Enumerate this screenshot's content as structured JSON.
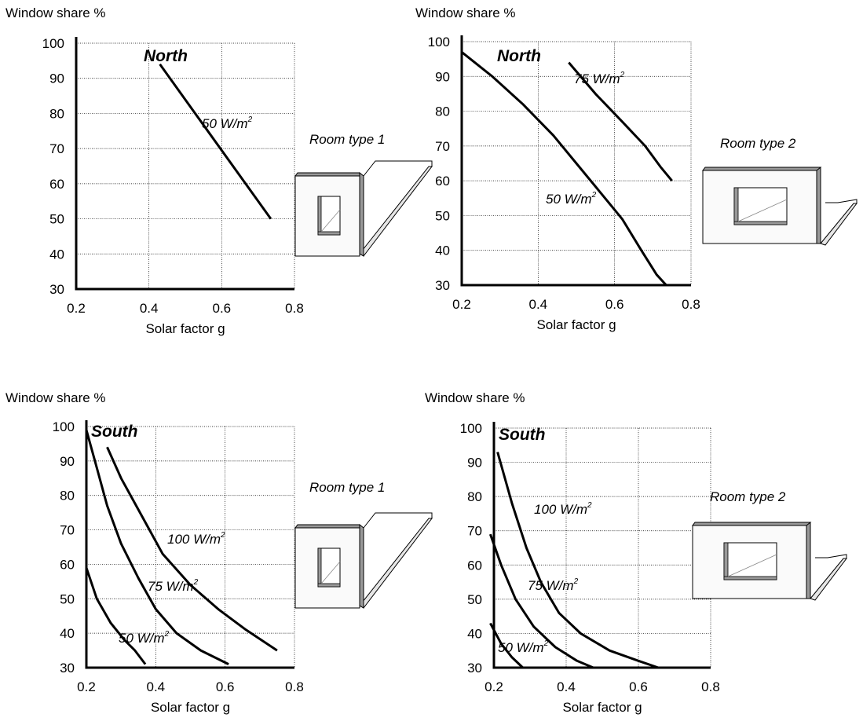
{
  "chart_data": [
    {
      "type": "line",
      "title": "North",
      "ylabel": "Window share %",
      "xlabel": "Solar factor g",
      "xlim": [
        0.2,
        0.8
      ],
      "ylim": [
        30,
        100
      ],
      "x_ticks": [
        "0.2",
        "0.4",
        "0.6",
        "0.8"
      ],
      "y_ticks": [
        "100",
        "90",
        "80",
        "70",
        "60",
        "50",
        "40",
        "30"
      ],
      "grid": true,
      "room_type": "Room type 1",
      "series": [
        {
          "name": "50 W/m2",
          "label_base": "50 W/m",
          "label_sup": "2",
          "points": [
            [
              0.43,
              94
            ],
            [
              0.735,
              50
            ]
          ]
        }
      ]
    },
    {
      "type": "line",
      "title": "North",
      "ylabel": "Window share %",
      "xlabel": "Solar factor g",
      "xlim": [
        0.2,
        0.8
      ],
      "ylim": [
        30,
        100
      ],
      "x_ticks": [
        "0.2",
        "0.4",
        "0.6",
        "0.8"
      ],
      "y_ticks": [
        "100",
        "90",
        "80",
        "70",
        "60",
        "50",
        "40",
        "30"
      ],
      "grid": true,
      "room_type": "Room type 2",
      "series": [
        {
          "name": "75 W/m2",
          "label_base": "75 W/m",
          "label_sup": "2",
          "points": [
            [
              0.48,
              94
            ],
            [
              0.55,
              85
            ],
            [
              0.62,
              77
            ],
            [
              0.68,
              70
            ],
            [
              0.72,
              64
            ],
            [
              0.75,
              60
            ]
          ]
        },
        {
          "name": "50 W/m2",
          "label_base": "50 W/m",
          "label_sup": "2",
          "points": [
            [
              0.2,
              97
            ],
            [
              0.28,
              90
            ],
            [
              0.36,
              82
            ],
            [
              0.44,
              73
            ],
            [
              0.5,
              65
            ],
            [
              0.56,
              57
            ],
            [
              0.62,
              49
            ],
            [
              0.67,
              40
            ],
            [
              0.71,
              33
            ],
            [
              0.735,
              30
            ]
          ]
        }
      ]
    },
    {
      "type": "line",
      "title": "South",
      "ylabel": "Window share %",
      "xlabel": "Solar factor g",
      "xlim": [
        0.2,
        0.8
      ],
      "ylim": [
        30,
        100
      ],
      "x_ticks": [
        "0.2",
        "0.4",
        "0.6",
        "0.8"
      ],
      "y_ticks": [
        "100",
        "90",
        "80",
        "70",
        "60",
        "50",
        "40",
        "30"
      ],
      "grid": true,
      "room_type": "Room type 1",
      "series": [
        {
          "name": "100 W/m2",
          "label_base": "100 W/m",
          "label_sup": "2",
          "points": [
            [
              0.26,
              94
            ],
            [
              0.3,
              85
            ],
            [
              0.36,
              74
            ],
            [
              0.42,
              63
            ],
            [
              0.5,
              54
            ],
            [
              0.58,
              47
            ],
            [
              0.66,
              41
            ],
            [
              0.75,
              35
            ]
          ]
        },
        {
          "name": "75 W/m2",
          "label_base": "75 W/m",
          "label_sup": "2",
          "points": [
            [
              0.2,
              99
            ],
            [
              0.23,
              88
            ],
            [
              0.26,
              77
            ],
            [
              0.3,
              66
            ],
            [
              0.35,
              56
            ],
            [
              0.4,
              47
            ],
            [
              0.46,
              40
            ],
            [
              0.53,
              35
            ],
            [
              0.61,
              31
            ]
          ]
        },
        {
          "name": "50 W/m2",
          "label_base": "50 W/m",
          "label_sup": "2",
          "points": [
            [
              0.2,
              59
            ],
            [
              0.23,
              50
            ],
            [
              0.27,
              43
            ],
            [
              0.31,
              38
            ],
            [
              0.34,
              35
            ],
            [
              0.37,
              31
            ]
          ]
        }
      ]
    },
    {
      "type": "line",
      "title": "South",
      "ylabel": "Window share %",
      "xlabel": "Solar factor g",
      "xlim": [
        0.2,
        0.8
      ],
      "ylim": [
        30,
        100
      ],
      "x_ticks": [
        "0.2",
        "0.4",
        "0.6",
        "0.8"
      ],
      "y_ticks": [
        "100",
        "90",
        "80",
        "70",
        "60",
        "50",
        "40",
        "30"
      ],
      "grid": true,
      "room_type": "Room type 2",
      "series": [
        {
          "name": "100 W/m2",
          "label_base": "100 W/m",
          "label_sup": "2",
          "points": [
            [
              0.21,
              93
            ],
            [
              0.25,
              78
            ],
            [
              0.29,
              65
            ],
            [
              0.33,
              55
            ],
            [
              0.38,
              46
            ],
            [
              0.44,
              40
            ],
            [
              0.52,
              35
            ],
            [
              0.6,
              32
            ],
            [
              0.655,
              30
            ]
          ]
        },
        {
          "name": "75 W/m2",
          "label_base": "75 W/m",
          "label_sup": "2",
          "points": [
            [
              0.19,
              69
            ],
            [
              0.22,
              60
            ],
            [
              0.26,
              50
            ],
            [
              0.31,
              42
            ],
            [
              0.37,
              36
            ],
            [
              0.43,
              32
            ],
            [
              0.475,
              30
            ]
          ]
        },
        {
          "name": "50 W/m2",
          "label_base": "50 W/m",
          "label_sup": "2",
          "points": [
            [
              0.19,
              43
            ],
            [
              0.22,
              37
            ],
            [
              0.25,
              33
            ],
            [
              0.28,
              30
            ]
          ]
        }
      ]
    }
  ]
}
